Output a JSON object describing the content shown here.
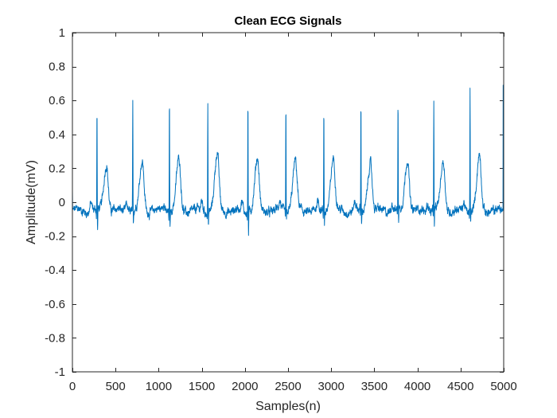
{
  "chart_data": {
    "type": "line",
    "title": "Clean ECG Signals",
    "xlabel": "Samples(n)",
    "ylabel": "Amplitude(mV)",
    "xlim": [
      0,
      5000
    ],
    "ylim": [
      -1,
      1
    ],
    "xticks": [
      0,
      500,
      1000,
      1500,
      2000,
      2500,
      3000,
      3500,
      4000,
      4500,
      5000
    ],
    "yticks": [
      -1,
      -0.8,
      -0.6,
      -0.4,
      -0.2,
      0,
      0.2,
      0.4,
      0.6,
      0.8,
      1
    ],
    "xtick_labels": [
      "0",
      "500",
      "1000",
      "1500",
      "2000",
      "2500",
      "3000",
      "3500",
      "4000",
      "4500",
      "5000"
    ],
    "ytick_labels": [
      "-1",
      "-0.8",
      "-0.6",
      "-0.4",
      "-0.2",
      "0",
      "0.2",
      "0.4",
      "0.6",
      "0.8",
      "1"
    ],
    "grid": false,
    "line_color": "#0072BD",
    "sample_count": 5000,
    "baseline": -0.05,
    "beats": [
      {
        "r_peak_sample": 285,
        "r_amplitude": 0.56,
        "s_amplitude": -0.2,
        "t_peak_sample": 395,
        "t_amplitude": 0.23
      },
      {
        "r_peak_sample": 700,
        "r_amplitude": 0.6,
        "s_amplitude": -0.14,
        "t_peak_sample": 810,
        "t_amplitude": 0.24
      },
      {
        "r_peak_sample": 1125,
        "r_amplitude": 0.61,
        "s_amplitude": -0.16,
        "t_peak_sample": 1235,
        "t_amplitude": 0.25
      },
      {
        "r_peak_sample": 1570,
        "r_amplitude": 0.59,
        "s_amplitude": -0.13,
        "t_peak_sample": 1680,
        "t_amplitude": 0.28
      },
      {
        "r_peak_sample": 2035,
        "r_amplitude": 0.62,
        "s_amplitude": -0.18,
        "t_peak_sample": 2145,
        "t_amplitude": 0.25
      },
      {
        "r_peak_sample": 2475,
        "r_amplitude": 0.59,
        "s_amplitude": -0.13,
        "t_peak_sample": 2585,
        "t_amplitude": 0.24
      },
      {
        "r_peak_sample": 2915,
        "r_amplitude": 0.58,
        "s_amplitude": -0.13,
        "t_peak_sample": 3025,
        "t_amplitude": 0.26
      },
      {
        "r_peak_sample": 3345,
        "r_amplitude": 0.59,
        "s_amplitude": -0.16,
        "t_peak_sample": 3455,
        "t_amplitude": 0.24
      },
      {
        "r_peak_sample": 3775,
        "r_amplitude": 0.61,
        "s_amplitude": -0.13,
        "t_peak_sample": 3885,
        "t_amplitude": 0.26
      },
      {
        "r_peak_sample": 4190,
        "r_amplitude": 0.62,
        "s_amplitude": -0.17,
        "t_peak_sample": 4300,
        "t_amplitude": 0.24
      },
      {
        "r_peak_sample": 4610,
        "r_amplitude": 0.67,
        "s_amplitude": -0.13,
        "t_peak_sample": 4720,
        "t_amplitude": 0.27
      }
    ],
    "end_sample_value": 0.69
  }
}
